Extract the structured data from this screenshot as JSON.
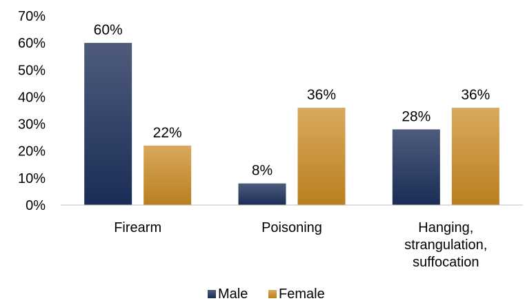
{
  "chart_data": {
    "type": "bar",
    "title": "",
    "xlabel": "",
    "ylabel": "",
    "categories": [
      [
        "Firearm"
      ],
      [
        "Poisoning"
      ],
      [
        "Hanging,",
        "strangulation,",
        "suffocation"
      ]
    ],
    "series": [
      {
        "name": "Male",
        "values": [
          60,
          8,
          28
        ],
        "labels": [
          "60%",
          "8%",
          "28%"
        ],
        "color_top": "#4e5b7c",
        "color_bottom": "#1a2d56"
      },
      {
        "name": "Female",
        "values": [
          22,
          36,
          36
        ],
        "labels": [
          "22%",
          "36%",
          "36%"
        ],
        "color_top": "#d9a95e",
        "color_bottom": "#b97f1e"
      }
    ],
    "ylim": [
      0,
      70
    ],
    "yticks": [
      0,
      10,
      20,
      30,
      40,
      50,
      60,
      70
    ],
    "ytick_labels": [
      "0%",
      "10%",
      "20%",
      "30%",
      "40%",
      "50%",
      "60%",
      "70%"
    ],
    "grid": false,
    "legend_position": "bottom"
  }
}
